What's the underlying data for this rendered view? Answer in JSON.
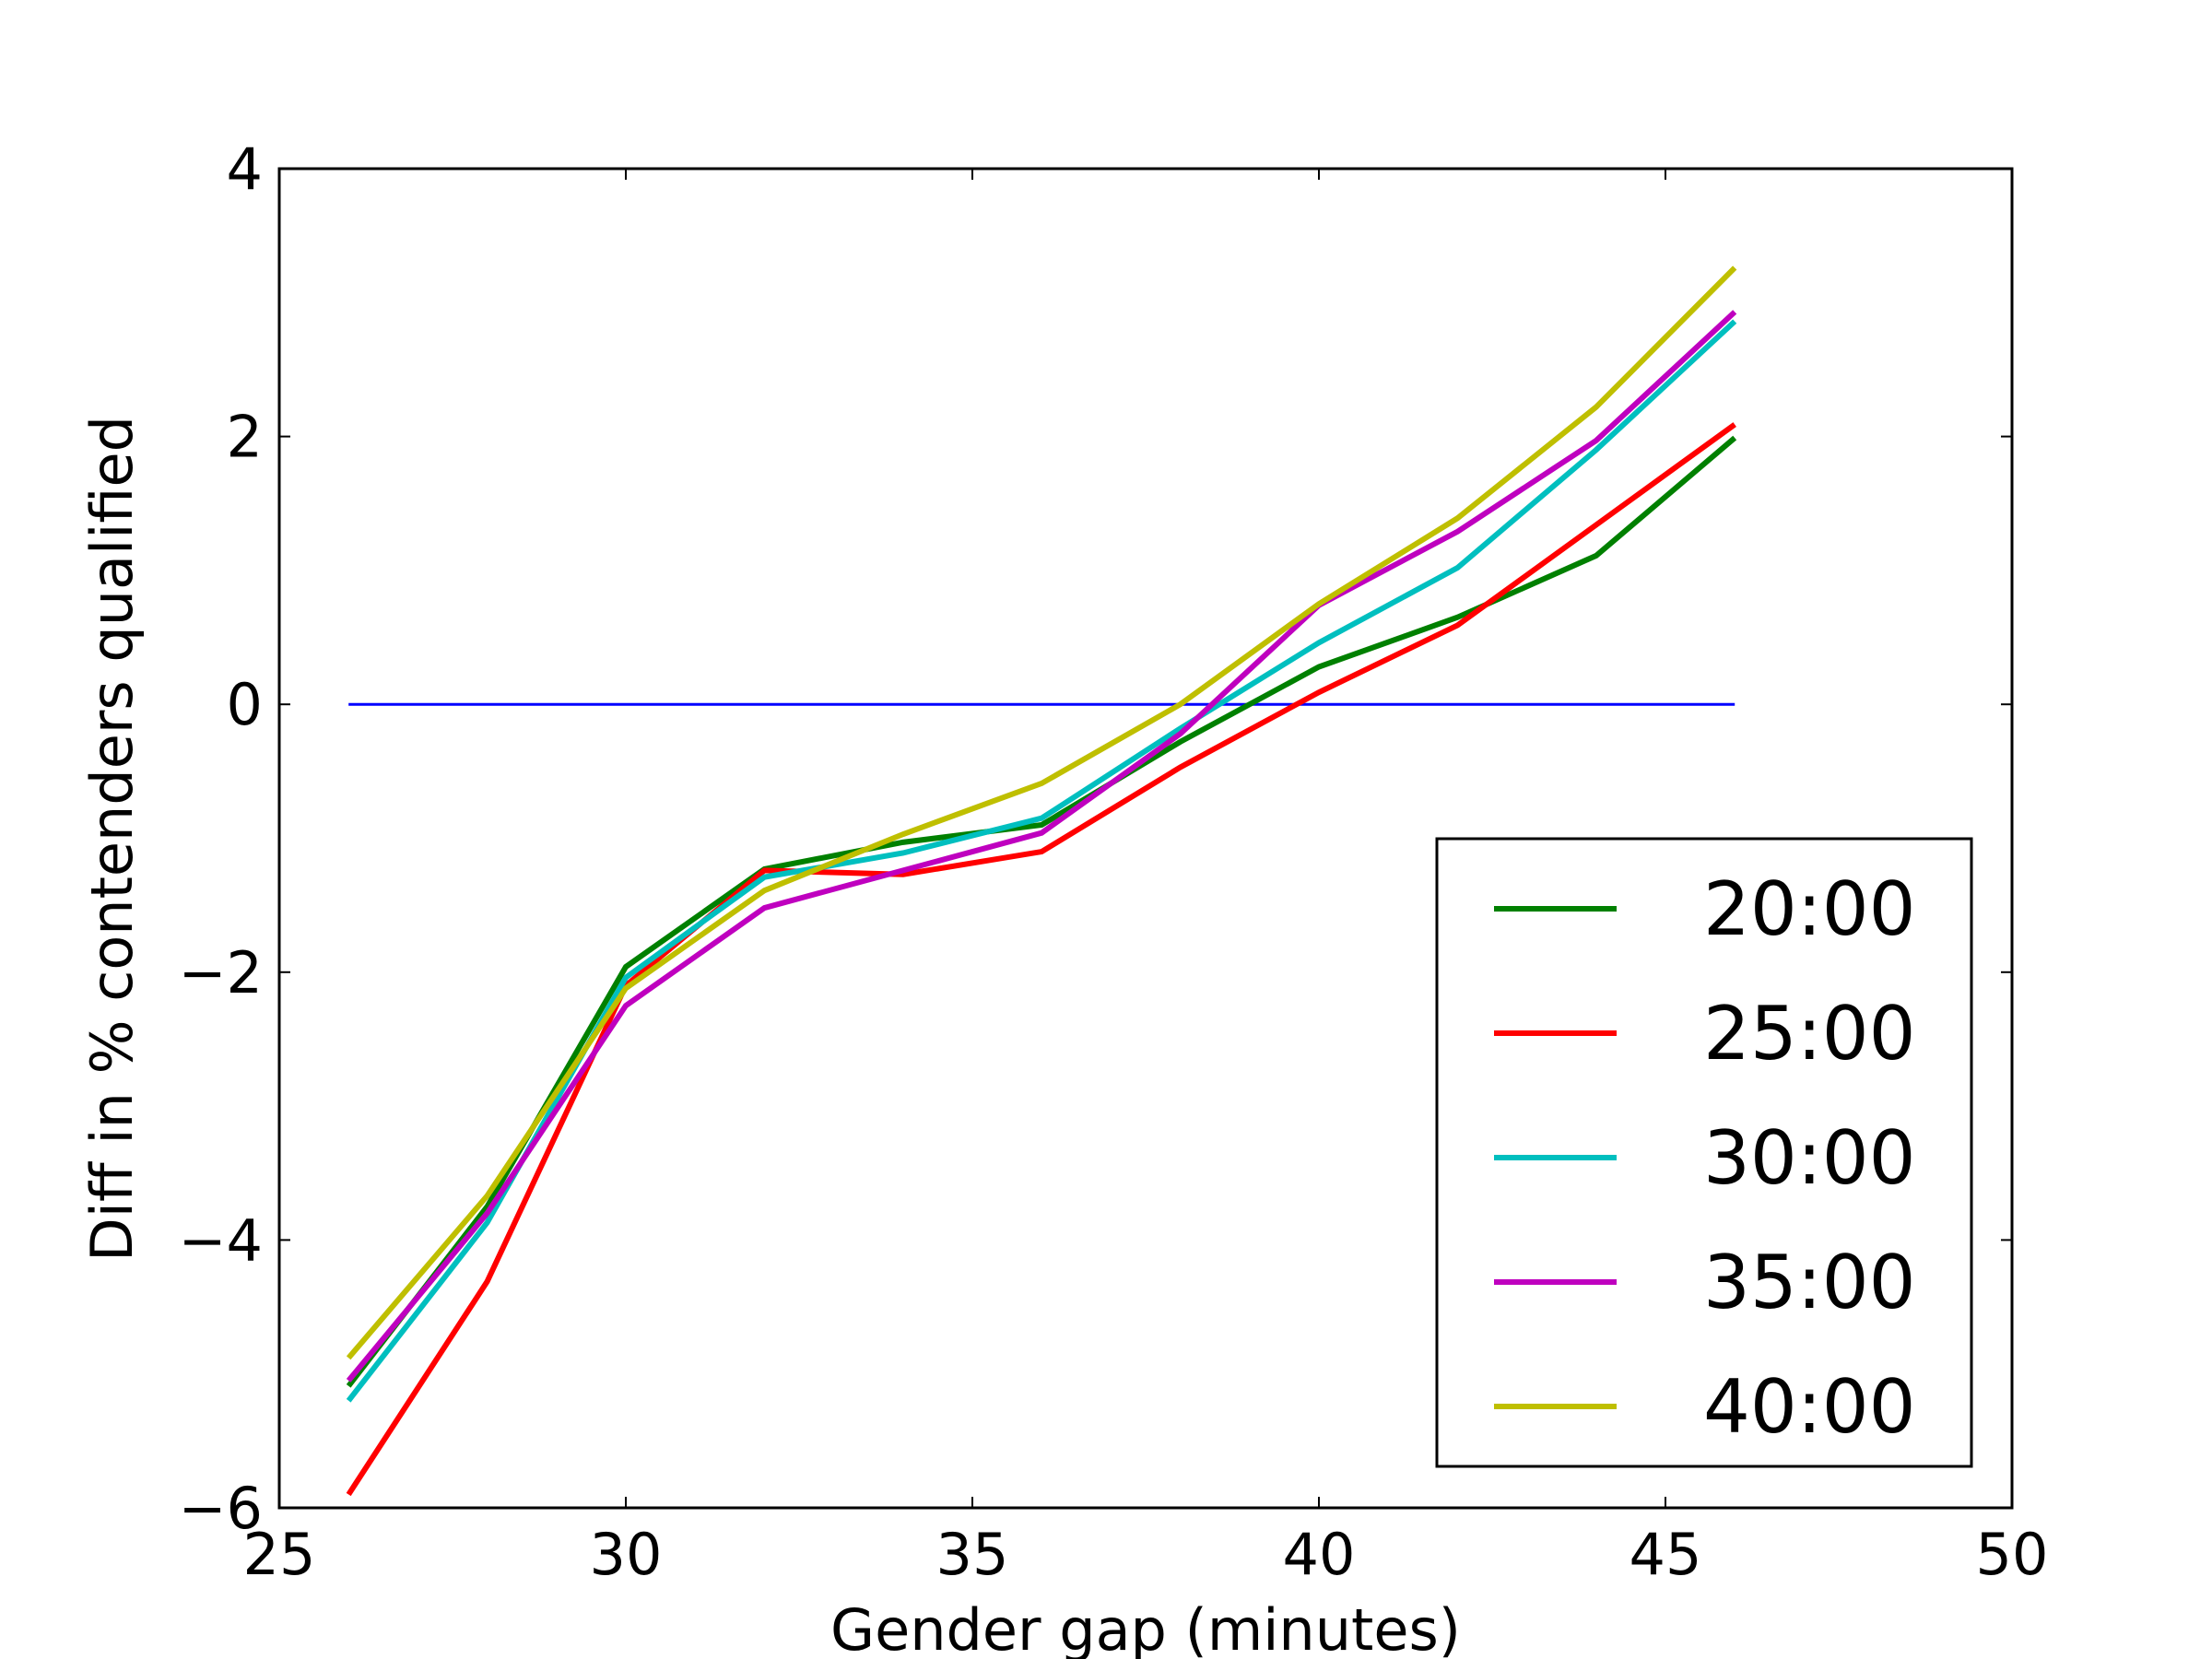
{
  "chart_data": {
    "type": "line",
    "title": "",
    "xlabel": "Gender gap (minutes)",
    "ylabel": "Diff in % contenders qualified",
    "xlim": [
      25,
      50
    ],
    "ylim": [
      -6,
      4
    ],
    "xticks": [
      25,
      30,
      35,
      40,
      45,
      50
    ],
    "yticks": [
      -6,
      -4,
      -2,
      0,
      2,
      4
    ],
    "xtick_labels": [
      "25",
      "30",
      "35",
      "40",
      "45",
      "50"
    ],
    "ytick_labels": [
      "−6",
      "−4",
      "−2",
      "0",
      "2",
      "4"
    ],
    "grid": false,
    "legend_position": "bottom-right",
    "x": [
      26,
      28,
      30,
      32,
      34,
      36,
      38,
      40,
      42,
      44,
      46
    ],
    "reference_line": {
      "y": 0,
      "x_range": [
        26,
        46
      ],
      "color": "#0000ff"
    },
    "series": [
      {
        "name": "20:00",
        "color": "#008000",
        "values": [
          -5.09,
          -3.75,
          -1.96,
          -1.23,
          -1.03,
          -0.9,
          -0.28,
          0.28,
          0.65,
          1.11,
          1.99
        ]
      },
      {
        "name": "25:00",
        "color": "#ff0000",
        "values": [
          -5.9,
          -4.31,
          -2.1,
          -1.24,
          -1.27,
          -1.1,
          -0.47,
          0.09,
          0.59,
          1.34,
          2.09
        ]
      },
      {
        "name": "30:00",
        "color": "#00bfbf",
        "values": [
          -5.2,
          -3.87,
          -2.04,
          -1.29,
          -1.11,
          -0.85,
          -0.18,
          0.46,
          1.02,
          1.9,
          2.86
        ]
      },
      {
        "name": "35:00",
        "color": "#bf00bf",
        "values": [
          -5.05,
          -3.8,
          -2.25,
          -1.52,
          -1.24,
          -0.96,
          -0.22,
          0.74,
          1.29,
          1.97,
          2.93
        ]
      },
      {
        "name": "40:00",
        "color": "#bfbf00",
        "values": [
          -4.88,
          -3.67,
          -2.12,
          -1.39,
          -0.97,
          -0.59,
          0.0,
          0.75,
          1.39,
          2.22,
          3.26
        ]
      }
    ]
  }
}
